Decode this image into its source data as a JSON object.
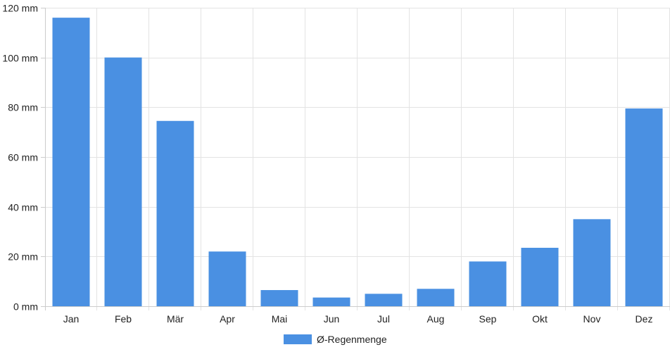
{
  "chart_data": {
    "type": "bar",
    "title": "",
    "xlabel": "",
    "ylabel": "",
    "categories": [
      "Jan",
      "Feb",
      "Mär",
      "Apr",
      "Mai",
      "Jun",
      "Jul",
      "Aug",
      "Sep",
      "Okt",
      "Nov",
      "Dez"
    ],
    "series": [
      {
        "name": "Ø-Regenmenge",
        "color": "#4a90e2",
        "values": [
          116,
          100,
          74.5,
          22,
          6.5,
          3.5,
          5,
          7,
          18,
          23.5,
          35,
          79.5
        ]
      }
    ],
    "ylim": [
      0,
      120
    ],
    "yticks": [
      0,
      20,
      40,
      60,
      80,
      100,
      120
    ],
    "ytick_labels": [
      "0 mm",
      "20 mm",
      "40 mm",
      "60 mm",
      "80 mm",
      "100 mm",
      "120 mm"
    ],
    "grid": true,
    "legend_position": "bottom-center"
  }
}
